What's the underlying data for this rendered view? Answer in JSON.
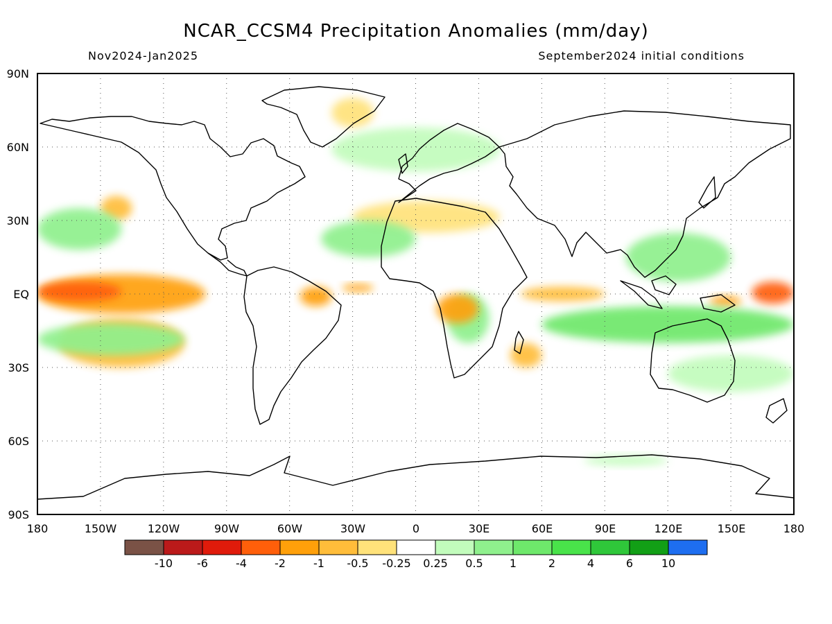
{
  "title": "NCAR_CCSM4 Precipitation Anomalies (mm/day)",
  "period": "Nov2024-Jan2025",
  "initial_conditions": "September2024 initial conditions",
  "map": {
    "projection": "equirectangular",
    "lon_range": [
      -180,
      180
    ],
    "lat_range": [
      -90,
      90
    ],
    "grid": "dotted",
    "lat_ticks": [
      "90N",
      "60N",
      "30N",
      "EQ",
      "30S",
      "60S",
      "90S"
    ],
    "lon_ticks": [
      "180",
      "150W",
      "120W",
      "90W",
      "60W",
      "30W",
      "0",
      "30E",
      "60E",
      "90E",
      "120E",
      "150E",
      "180"
    ]
  },
  "colorbar": {
    "colors": [
      "#7a5246",
      "#bb1a1a",
      "#e01b0b",
      "#ff5f0a",
      "#ffa00a",
      "#ffbd3a",
      "#ffe27a",
      "#ffffff",
      "#c2fcbc",
      "#8ff08d",
      "#6ee86b",
      "#49e34a",
      "#2fc73a",
      "#129f16",
      "#1e6ef0"
    ],
    "labels": [
      "-10",
      "-6",
      "-4",
      "-2",
      "-1",
      "-0.5",
      "-0.25",
      "0.25",
      "0.5",
      "1",
      "2",
      "4",
      "6",
      "10"
    ]
  },
  "anomalies": [
    {
      "type": "dry",
      "level": "-4",
      "lon": [
        -180,
        -140
      ],
      "lat": [
        -3,
        5
      ]
    },
    {
      "type": "dry",
      "level": "-4",
      "lon": [
        160,
        180
      ],
      "lat": [
        -4,
        5
      ]
    },
    {
      "type": "dry",
      "level": "-2",
      "lon": [
        -180,
        -100
      ],
      "lat": [
        -8,
        8
      ]
    },
    {
      "type": "dry",
      "level": "-1",
      "lon": [
        -170,
        -110
      ],
      "lat": [
        -30,
        -10
      ]
    },
    {
      "type": "dry",
      "level": "-1",
      "lon": [
        -150,
        -135
      ],
      "lat": [
        30,
        40
      ]
    },
    {
      "type": "dry",
      "level": "-2",
      "lon": [
        -55,
        -40
      ],
      "lat": [
        -5,
        3
      ]
    },
    {
      "type": "dry",
      "level": "-2",
      "lon": [
        -35,
        -20
      ],
      "lat": [
        1,
        4
      ]
    },
    {
      "type": "dry",
      "level": "-2",
      "lon": [
        10,
        30
      ],
      "lat": [
        -12,
        0
      ]
    },
    {
      "type": "dry",
      "level": "-1",
      "lon": [
        50,
        90
      ],
      "lat": [
        -3,
        3
      ]
    },
    {
      "type": "dry",
      "level": "-2",
      "lon": [
        140,
        155
      ],
      "lat": [
        -5,
        -1
      ]
    },
    {
      "type": "dry",
      "level": "-1",
      "lon": [
        45,
        60
      ],
      "lat": [
        -30,
        -20
      ]
    },
    {
      "type": "dry",
      "level": "-0.5",
      "lon": [
        -40,
        -20
      ],
      "lat": [
        68,
        80
      ]
    },
    {
      "type": "dry",
      "level": "-0.5",
      "lon": [
        -30,
        40
      ],
      "lat": [
        25,
        38
      ]
    },
    {
      "type": "wet",
      "level": "1",
      "lon": [
        -180,
        -140
      ],
      "lat": [
        18,
        35
      ]
    },
    {
      "type": "wet",
      "level": "1",
      "lon": [
        -180,
        -110
      ],
      "lat": [
        -25,
        -12
      ]
    },
    {
      "type": "wet",
      "level": "2",
      "lon": [
        60,
        180
      ],
      "lat": [
        -20,
        -5
      ]
    },
    {
      "type": "wet",
      "level": "1",
      "lon": [
        100,
        150
      ],
      "lat": [
        5,
        25
      ]
    },
    {
      "type": "wet",
      "level": "1",
      "lon": [
        15,
        35
      ],
      "lat": [
        -20,
        0
      ]
    },
    {
      "type": "wet",
      "level": "1",
      "lon": [
        -45,
        0
      ],
      "lat": [
        15,
        30
      ]
    },
    {
      "type": "wet",
      "level": "0.5",
      "lon": [
        -40,
        40
      ],
      "lat": [
        50,
        68
      ]
    },
    {
      "type": "wet",
      "level": "0.5",
      "lon": [
        120,
        180
      ],
      "lat": [
        -40,
        -25
      ]
    },
    {
      "type": "wet",
      "level": "0.5",
      "lon": [
        80,
        120
      ],
      "lat": [
        -70,
        -66
      ]
    }
  ]
}
